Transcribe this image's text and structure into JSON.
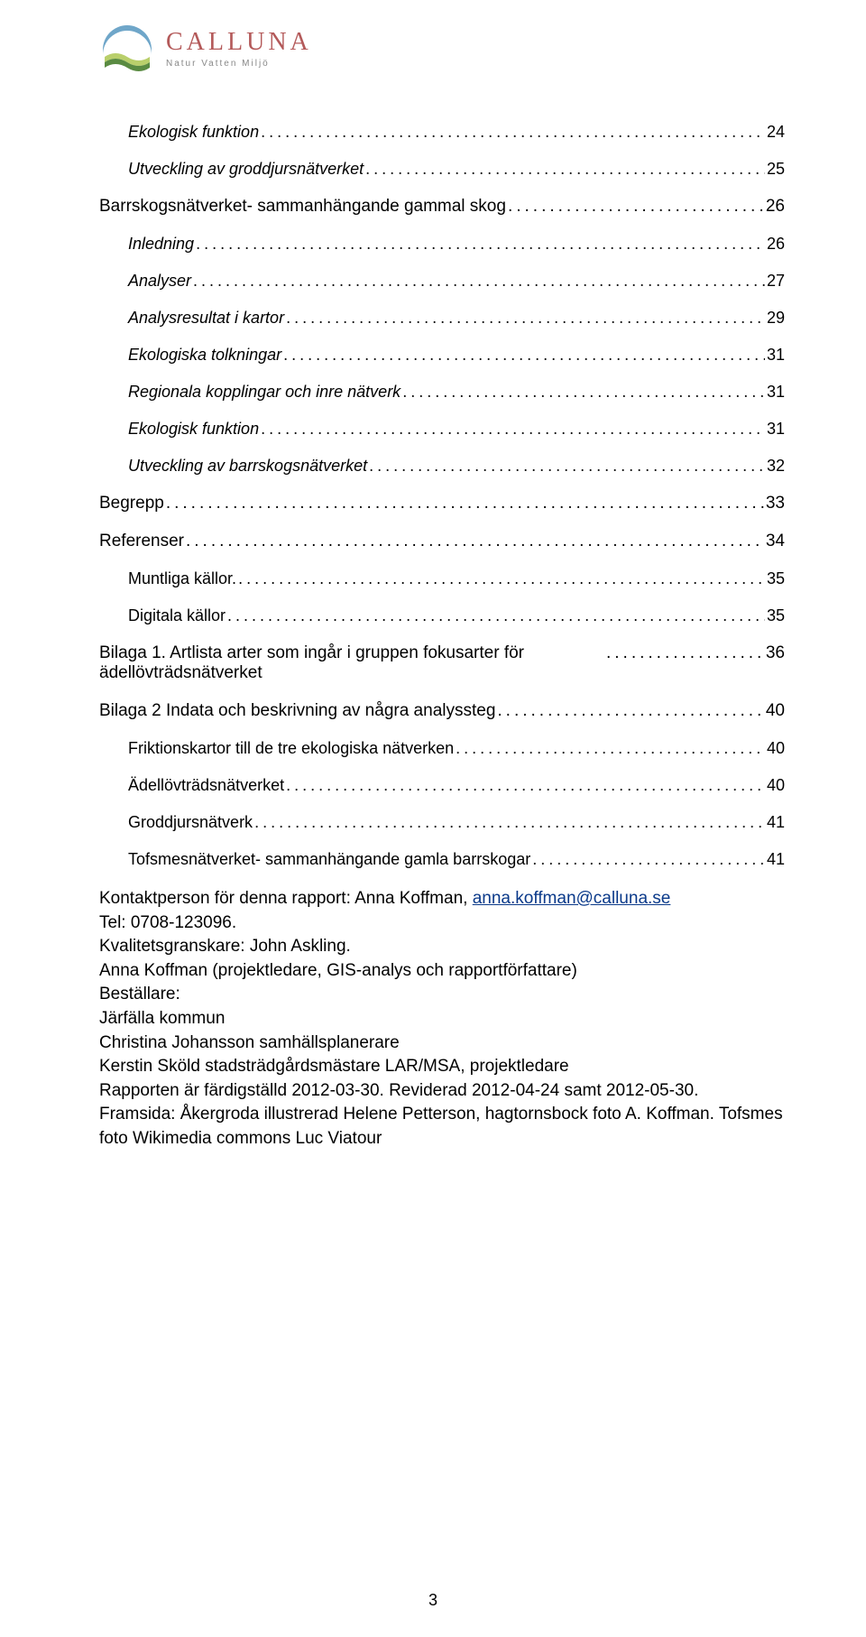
{
  "logo": {
    "name": "CALLUNA",
    "tagline": "Natur  Vatten  Miljö",
    "name_color": "#b45a5a",
    "tagline_color": "#888888",
    "arc_color": "#6fa6c9",
    "cloud_color": "#ffffff",
    "grass_color": "#b9cf6b",
    "ground_color": "#5a8b42"
  },
  "toc": [
    {
      "label": "Ekologisk funktion",
      "page": "24",
      "level": 1,
      "italic": true
    },
    {
      "label": "Utveckling av groddjursnätverket",
      "page": "25",
      "level": 1,
      "italic": true
    },
    {
      "label": "Barrskogsnätverket- sammanhängande gammal skog",
      "page": "26",
      "level": 0
    },
    {
      "label": "Inledning",
      "page": "26",
      "level": 1,
      "italic": true
    },
    {
      "label": "Analyser",
      "page": "27",
      "level": 1,
      "italic": true
    },
    {
      "label": "Analysresultat i kartor",
      "page": "29",
      "level": 1,
      "italic": true
    },
    {
      "label": "Ekologiska tolkningar",
      "page": "31",
      "level": 1,
      "italic": true
    },
    {
      "label": "Regionala kopplingar och inre nätverk",
      "page": "31",
      "level": 1,
      "italic": true
    },
    {
      "label": "Ekologisk funktion",
      "page": "31",
      "level": 1,
      "italic": true
    },
    {
      "label": "Utveckling av barrskogsnätverket",
      "page": "32",
      "level": 1,
      "italic": true
    },
    {
      "label": "Begrepp",
      "page": "33",
      "level": 0
    },
    {
      "label": "Referenser",
      "page": "34",
      "level": 0
    },
    {
      "label": "Muntliga källor.",
      "page": "35",
      "level": 1
    },
    {
      "label": "Digitala källor",
      "page": "35",
      "level": 1
    },
    {
      "label": "Bilaga 1. Artlista arter som ingår i gruppen fokusarter för ädellövträdsnätverket",
      "page": "36",
      "level": 0,
      "multiline": true
    },
    {
      "label": "Bilaga 2 Indata och beskrivning av några analyssteg",
      "page": "40",
      "level": 0
    },
    {
      "label": "Friktionskartor till de tre ekologiska nätverken",
      "page": "40",
      "level": 1
    },
    {
      "label": "Ädellövträdsnätverket",
      "page": "40",
      "level": 1
    },
    {
      "label": "Groddjursnätverk",
      "page": "41",
      "level": 1
    },
    {
      "label": "Tofsmesnätverket- sammanhängande gamla barrskogar",
      "page": "41",
      "level": 1
    }
  ],
  "info": {
    "line1_pre": "Kontaktperson för denna rapport: Anna Koffman, ",
    "link_text": "anna.koffman@calluna.se",
    "line2": "Tel: 0708-123096.",
    "line3": "Kvalitetsgranskare: John Askling.",
    "line4": "Anna Koffman (projektledare, GIS-analys och rapportförfattare)",
    "line5": "Beställare:",
    "line6": "Järfälla kommun",
    "line7": "Christina Johansson samhällsplanerare",
    "line8": "Kerstin Sköld stadsträdgårdsmästare LAR/MSA, projektledare",
    "line9": "Rapporten är färdigställd 2012-03-30. Reviderad 2012-04-24 samt 2012-05-30.",
    "line10": "Framsida: Åkergroda illustrerad Helene Petterson, hagtornsbock foto A. Koffman. Tofsmes foto Wikimedia commons Luc Viatour"
  },
  "page_number": "3",
  "colors": {
    "text": "#000000",
    "link": "#0b3a8a",
    "background": "#ffffff"
  },
  "typography": {
    "heading_font": "Optima/Candara/Trebuchet",
    "body_font": "Arial",
    "lvl0_size_pt": 14,
    "lvl1_size_pt": 13,
    "info_size_pt": 14
  }
}
